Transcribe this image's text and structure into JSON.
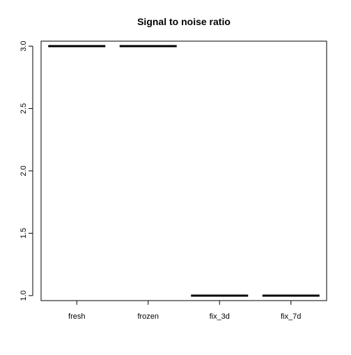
{
  "chart_data": {
    "type": "boxplot",
    "title": "Signal to noise ratio",
    "xlabel": "",
    "ylabel": "",
    "categories": [
      "fresh",
      "frozen",
      "fix_3d",
      "fix_7d"
    ],
    "values": [
      3.0,
      3.0,
      1.0,
      1.0
    ],
    "ylim": [
      0.96,
      3.04
    ],
    "y_ticks": [
      1.0,
      1.5,
      2.0,
      2.5,
      3.0
    ],
    "y_tick_labels": [
      "1.0",
      "1.5",
      "2.0",
      "2.5",
      "3.0"
    ],
    "grid": false,
    "legend": "none",
    "colors": {
      "median_line": "#000000",
      "axis": "#000000",
      "background": "#ffffff"
    }
  }
}
